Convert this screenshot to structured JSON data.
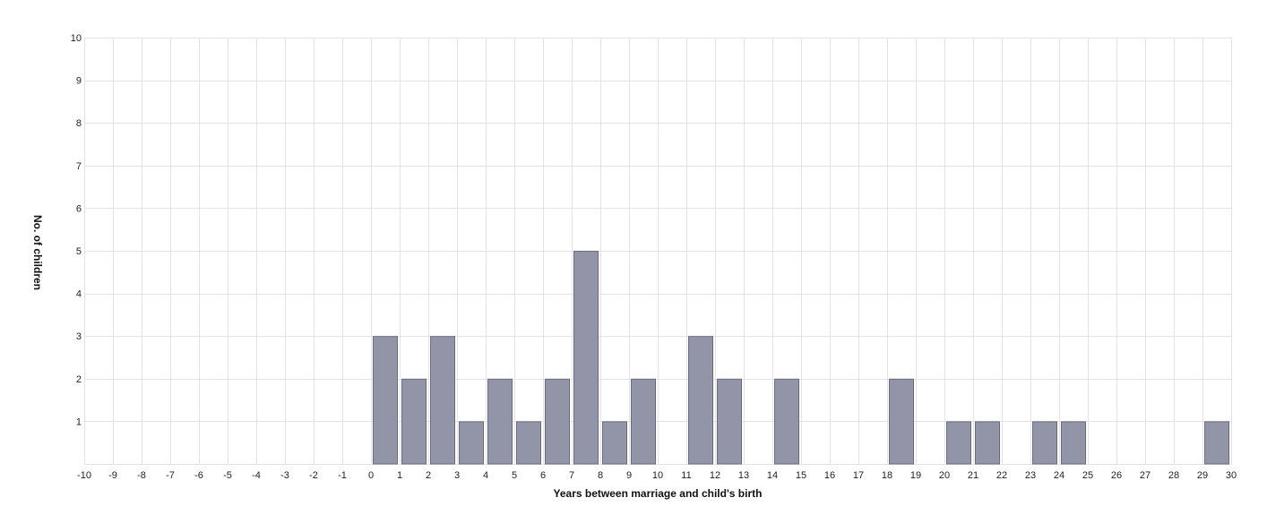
{
  "chart_data": {
    "type": "bar",
    "title": "",
    "xlabel": "Years between marriage and child's birth",
    "ylabel": "No. of children",
    "xlim": [
      -10,
      30
    ],
    "ylim": [
      0,
      10
    ],
    "x_ticks": [
      -10,
      -9,
      -8,
      -7,
      -6,
      -5,
      -4,
      -3,
      -2,
      -1,
      0,
      1,
      2,
      3,
      4,
      5,
      6,
      7,
      8,
      9,
      10,
      11,
      12,
      13,
      14,
      15,
      16,
      17,
      18,
      19,
      20,
      21,
      22,
      23,
      24,
      25,
      26,
      27,
      28,
      29,
      30
    ],
    "y_ticks": [
      1,
      2,
      3,
      4,
      5,
      6,
      7,
      8,
      9,
      10
    ],
    "grid": true,
    "bar_color": "#9294a8",
    "bar_edge_color": "#6b6b80",
    "bins": [
      {
        "start": 0,
        "end": 1,
        "value": 3
      },
      {
        "start": 1,
        "end": 2,
        "value": 2
      },
      {
        "start": 2,
        "end": 3,
        "value": 3
      },
      {
        "start": 3,
        "end": 4,
        "value": 1
      },
      {
        "start": 4,
        "end": 5,
        "value": 2
      },
      {
        "start": 5,
        "end": 6,
        "value": 1
      },
      {
        "start": 6,
        "end": 7,
        "value": 2
      },
      {
        "start": 7,
        "end": 8,
        "value": 5
      },
      {
        "start": 8,
        "end": 9,
        "value": 1
      },
      {
        "start": 9,
        "end": 10,
        "value": 2
      },
      {
        "start": 11,
        "end": 12,
        "value": 3
      },
      {
        "start": 12,
        "end": 13,
        "value": 2
      },
      {
        "start": 14,
        "end": 15,
        "value": 2
      },
      {
        "start": 18,
        "end": 19,
        "value": 2
      },
      {
        "start": 20,
        "end": 21,
        "value": 1
      },
      {
        "start": 21,
        "end": 22,
        "value": 1
      },
      {
        "start": 23,
        "end": 24,
        "value": 1
      },
      {
        "start": 24,
        "end": 25,
        "value": 1
      },
      {
        "start": 29,
        "end": 30,
        "value": 1
      }
    ]
  }
}
